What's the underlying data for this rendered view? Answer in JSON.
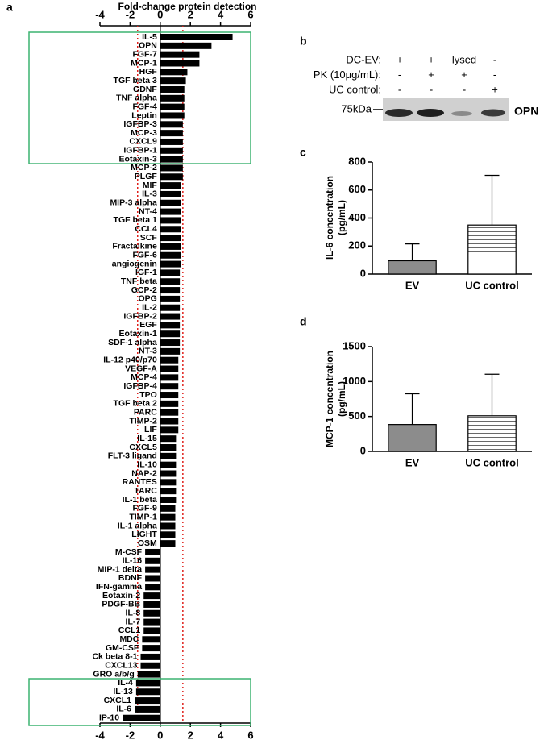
{
  "chart_data": [
    {
      "type": "bar",
      "orientation": "horizontal",
      "panel_label": "a",
      "x_label": "Fold-change protein detection",
      "categories": [
        "IL-5",
        "OPN",
        "FGF-7",
        "MCP-1",
        "HGF",
        "TGF beta 3",
        "GDNF",
        "TNF alpha",
        "FGF-4",
        "Leptin",
        "IGFBP-3",
        "MCP-3",
        "CXCL9",
        "IGFBP-1",
        "Eotaxin-3",
        "MCP-2",
        "PLGF",
        "MIF",
        "IL-3",
        "MIP-3 alpha",
        "NT-4",
        "TGF beta 1",
        "CCL4",
        "SCF",
        "Fractalkine",
        "FGF-6",
        "angiogenin",
        "IGF-1",
        "TNF beta",
        "GCP-2",
        "OPG",
        "IL-2",
        "IGFBP-2",
        "EGF",
        "Eotaxin-1",
        "SDF-1 alpha",
        "NT-3",
        "IL-12 p40/p70",
        "VEGF-A",
        "MCP-4",
        "IGFBP-4",
        "TPO",
        "TGF beta 2",
        "PARC",
        "TIMP-2",
        "LIF",
        "IL-15",
        "CXCL5",
        "FLT-3 ligand",
        "IL-10",
        "NAP-2",
        "RANTES",
        "TARC",
        "IL-1 beta",
        "FGF-9",
        "TIMP-1",
        "IL-1 alpha",
        "LIGHT",
        "OSM",
        "M-CSF",
        "IL-16",
        "MIP-1 delta",
        "BDNF",
        "IFN-gamma",
        "Eotaxin-2",
        "PDGF-BB",
        "IL-8",
        "IL-7",
        "CCL1",
        "MDC",
        "GM-CSF",
        "Ck beta 8-1",
        "CXCL13",
        "GRO a/b/g",
        "IL-4",
        "IL-13",
        "CXCL1",
        "IL-6",
        "IP-10"
      ],
      "values": [
        4.8,
        3.4,
        2.6,
        2.6,
        1.8,
        1.7,
        1.6,
        1.6,
        1.6,
        1.6,
        1.5,
        1.5,
        1.5,
        1.5,
        1.5,
        1.5,
        1.5,
        1.4,
        1.4,
        1.4,
        1.4,
        1.4,
        1.4,
        1.4,
        1.4,
        1.4,
        1.4,
        1.3,
        1.3,
        1.3,
        1.3,
        1.3,
        1.3,
        1.3,
        1.3,
        1.3,
        1.3,
        1.2,
        1.2,
        1.2,
        1.2,
        1.2,
        1.2,
        1.2,
        1.2,
        1.2,
        1.1,
        1.1,
        1.1,
        1.1,
        1.1,
        1.1,
        1.1,
        1.1,
        1.0,
        1.0,
        1.0,
        1.0,
        1.0,
        -1.0,
        -1.0,
        -1.0,
        -1.0,
        -1.0,
        -1.1,
        -1.1,
        -1.1,
        -1.1,
        -1.1,
        -1.2,
        -1.2,
        -1.3,
        -1.3,
        -1.5,
        -1.6,
        -1.6,
        -1.7,
        -1.7,
        -2.5
      ],
      "color": "#000000",
      "xlim": [
        -4,
        6
      ],
      "xticks": [
        -4,
        -2,
        0,
        2,
        4,
        6
      ],
      "reference_lines": [
        -1.5,
        1.5
      ],
      "reference_color": "#e0201b",
      "highlight_color": "#3cb371"
    },
    {
      "type": "bar",
      "orientation": "vertical",
      "panel_label": "c",
      "y_label": [
        "IL-6 concentration",
        "(pg/mL)"
      ],
      "categories": [
        "EV",
        "UC control"
      ],
      "values": [
        95,
        350
      ],
      "errors": [
        120,
        355
      ],
      "bar_styles": [
        "solid",
        "horizontal-stripes"
      ],
      "color": "#8c8c8c",
      "ylim": [
        0,
        800
      ],
      "yticks": [
        0,
        200,
        400,
        600,
        800
      ]
    },
    {
      "type": "bar",
      "orientation": "vertical",
      "panel_label": "d",
      "y_label": [
        "MCP-1 concentration",
        "(pg/mL)"
      ],
      "categories": [
        "EV",
        "UC control"
      ],
      "values": [
        385,
        510
      ],
      "errors": [
        440,
        595
      ],
      "bar_styles": [
        "solid",
        "horizontal-stripes"
      ],
      "color": "#8c8c8c",
      "ylim": [
        0,
        1500
      ],
      "yticks": [
        0,
        500,
        1000,
        1500
      ]
    }
  ],
  "blot": {
    "panel_label": "b",
    "rows": [
      {
        "label": "DC-EV:",
        "lanes": [
          "+",
          "+",
          "lysed",
          "-"
        ]
      },
      {
        "label": "PK (10μg/mL):",
        "lanes": [
          "-",
          "+",
          "+",
          "-"
        ]
      },
      {
        "label": "UC control:",
        "lanes": [
          "-",
          "-",
          "-",
          "+"
        ]
      }
    ],
    "marker": "75kDa",
    "band_label": "OPN"
  }
}
